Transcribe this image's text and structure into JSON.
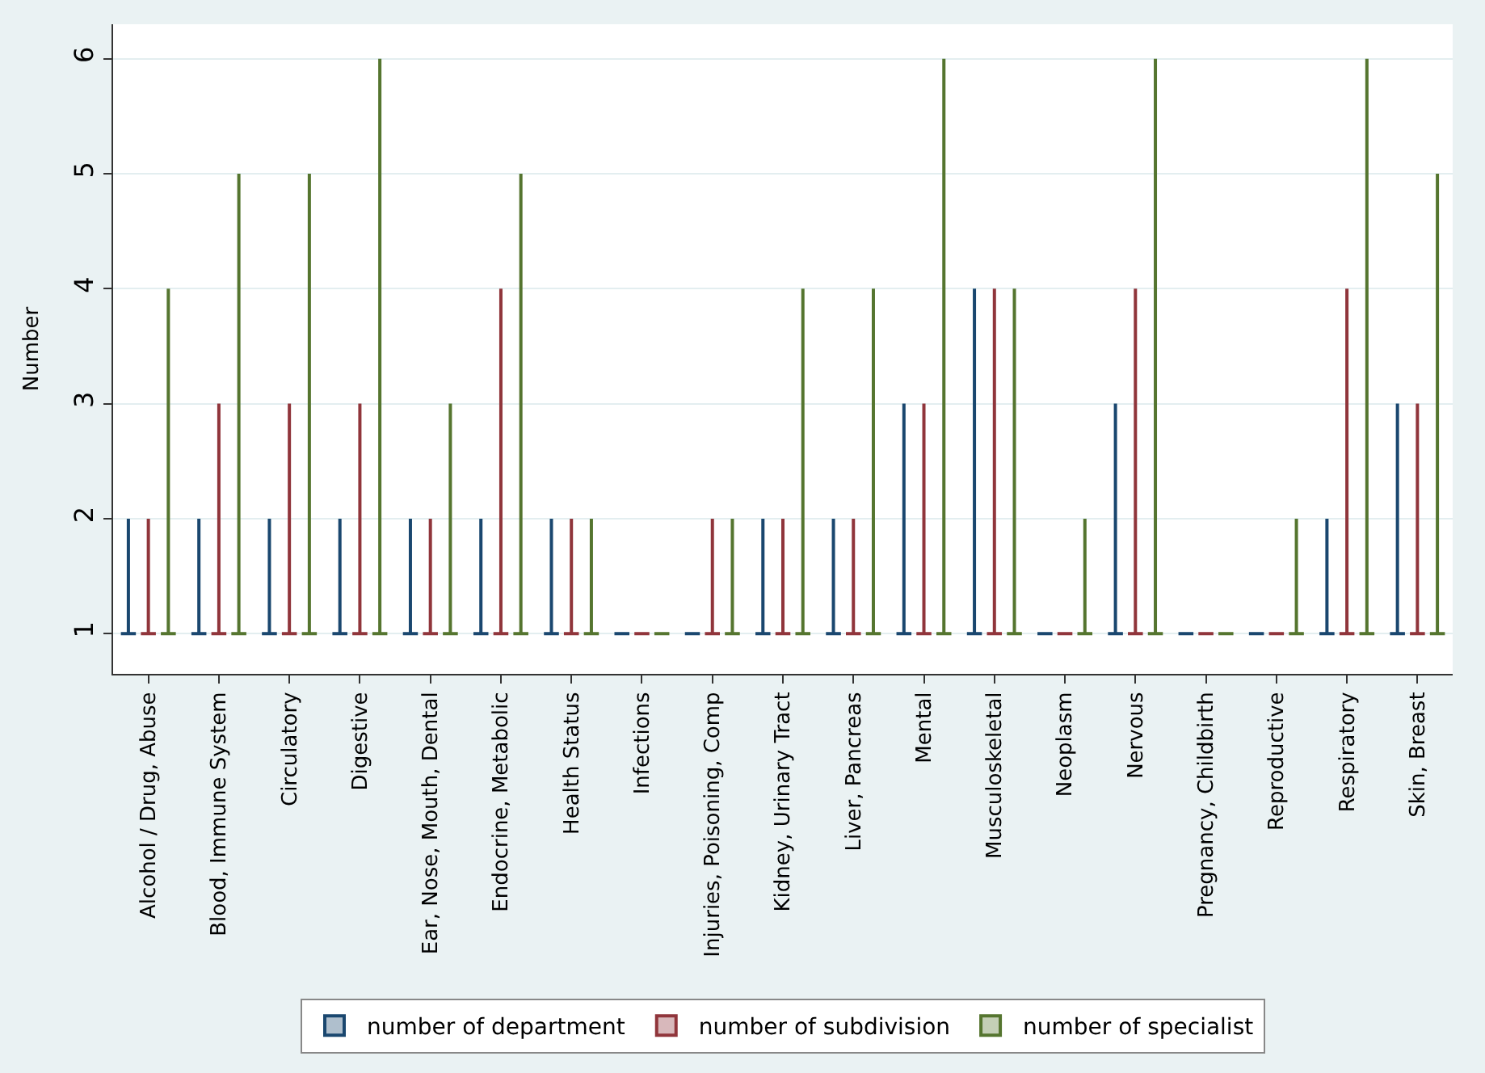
{
  "chart_data": {
    "type": "box",
    "ylabel": "Number",
    "ylim": [
      0.65,
      6.3
    ],
    "yticks": [
      1,
      2,
      3,
      4,
      5,
      6
    ],
    "grid": "y",
    "legend": "bottom",
    "categories": [
      "Alcohol / Drug, Abuse",
      "Blood, Immune System",
      "Circulatory",
      "Digestive",
      "Ear, Nose, Mouth, Dental",
      "Endocrine, Metabolic",
      "Health Status",
      "Infections",
      "Injuries, Poisoning, Comp",
      "Kidney, Urinary Tract",
      "Liver, Pancreas",
      "Mental",
      "Musculoskeletal",
      "Neoplasm",
      "Nervous",
      "Pregnancy, Childbirth",
      "Reproductive",
      "Respiratory",
      "Skin, Breast"
    ],
    "series": [
      {
        "name": "number of department",
        "color": "#1a476f",
        "boxes": [
          {
            "low": 1,
            "q1": 1,
            "median": 1,
            "q3": 1,
            "high": 2
          },
          {
            "low": 1,
            "q1": 1,
            "median": 1,
            "q3": 1,
            "high": 2
          },
          {
            "low": 1,
            "q1": 1,
            "median": 1,
            "q3": 1,
            "high": 2
          },
          {
            "low": 1,
            "q1": 1,
            "median": 1,
            "q3": 1,
            "high": 2
          },
          {
            "low": 1,
            "q1": 1,
            "median": 1,
            "q3": 1,
            "high": 2
          },
          {
            "low": 1,
            "q1": 1,
            "median": 1,
            "q3": 1,
            "high": 2
          },
          {
            "low": 1,
            "q1": 1,
            "median": 1,
            "q3": 1,
            "high": 2
          },
          {
            "low": 1,
            "q1": 1,
            "median": 1,
            "q3": 1,
            "high": 1
          },
          {
            "low": 1,
            "q1": 1,
            "median": 1,
            "q3": 1,
            "high": 1
          },
          {
            "low": 1,
            "q1": 1,
            "median": 1,
            "q3": 1,
            "high": 2
          },
          {
            "low": 1,
            "q1": 1,
            "median": 1,
            "q3": 1,
            "high": 2
          },
          {
            "low": 1,
            "q1": 1,
            "median": 1,
            "q3": 1,
            "high": 3
          },
          {
            "low": 1,
            "q1": 1,
            "median": 1,
            "q3": 1,
            "high": 4
          },
          {
            "low": 1,
            "q1": 1,
            "median": 1,
            "q3": 1,
            "high": 1
          },
          {
            "low": 1,
            "q1": 1,
            "median": 1,
            "q3": 1,
            "high": 3
          },
          {
            "low": 1,
            "q1": 1,
            "median": 1,
            "q3": 1,
            "high": 1
          },
          {
            "low": 1,
            "q1": 1,
            "median": 1,
            "q3": 1,
            "high": 1
          },
          {
            "low": 1,
            "q1": 1,
            "median": 1,
            "q3": 1,
            "high": 2
          },
          {
            "low": 1,
            "q1": 1,
            "median": 1,
            "q3": 1,
            "high": 3
          }
        ]
      },
      {
        "name": "number of subdivision",
        "color": "#90353b",
        "boxes": [
          {
            "low": 1,
            "q1": 1,
            "median": 1,
            "q3": 1,
            "high": 2
          },
          {
            "low": 1,
            "q1": 1,
            "median": 1,
            "q3": 1,
            "high": 3
          },
          {
            "low": 1,
            "q1": 1,
            "median": 1,
            "q3": 1,
            "high": 3
          },
          {
            "low": 1,
            "q1": 1,
            "median": 1,
            "q3": 1,
            "high": 3
          },
          {
            "low": 1,
            "q1": 1,
            "median": 1,
            "q3": 1,
            "high": 2
          },
          {
            "low": 1,
            "q1": 1,
            "median": 1,
            "q3": 1,
            "high": 4
          },
          {
            "low": 1,
            "q1": 1,
            "median": 1,
            "q3": 1,
            "high": 2
          },
          {
            "low": 1,
            "q1": 1,
            "median": 1,
            "q3": 1,
            "high": 1
          },
          {
            "low": 1,
            "q1": 1,
            "median": 1,
            "q3": 1,
            "high": 2
          },
          {
            "low": 1,
            "q1": 1,
            "median": 1,
            "q3": 1,
            "high": 2
          },
          {
            "low": 1,
            "q1": 1,
            "median": 1,
            "q3": 1,
            "high": 2
          },
          {
            "low": 1,
            "q1": 1,
            "median": 1,
            "q3": 1,
            "high": 3
          },
          {
            "low": 1,
            "q1": 1,
            "median": 1,
            "q3": 1,
            "high": 4
          },
          {
            "low": 1,
            "q1": 1,
            "median": 1,
            "q3": 1,
            "high": 1
          },
          {
            "low": 1,
            "q1": 1,
            "median": 1,
            "q3": 1,
            "high": 4
          },
          {
            "low": 1,
            "q1": 1,
            "median": 1,
            "q3": 1,
            "high": 1
          },
          {
            "low": 1,
            "q1": 1,
            "median": 1,
            "q3": 1,
            "high": 1
          },
          {
            "low": 1,
            "q1": 1,
            "median": 1,
            "q3": 1,
            "high": 4
          },
          {
            "low": 1,
            "q1": 1,
            "median": 1,
            "q3": 1,
            "high": 3
          }
        ]
      },
      {
        "name": "number of specialist",
        "color": "#55752f",
        "boxes": [
          {
            "low": 1,
            "q1": 1,
            "median": 1,
            "q3": 1,
            "high": 4
          },
          {
            "low": 1,
            "q1": 1,
            "median": 1,
            "q3": 1,
            "high": 5
          },
          {
            "low": 1,
            "q1": 1,
            "median": 1,
            "q3": 1,
            "high": 5
          },
          {
            "low": 1,
            "q1": 1,
            "median": 1,
            "q3": 1,
            "high": 6
          },
          {
            "low": 1,
            "q1": 1,
            "median": 1,
            "q3": 1,
            "high": 3
          },
          {
            "low": 1,
            "q1": 1,
            "median": 1,
            "q3": 1,
            "high": 5
          },
          {
            "low": 1,
            "q1": 1,
            "median": 1,
            "q3": 1,
            "high": 2
          },
          {
            "low": 1,
            "q1": 1,
            "median": 1,
            "q3": 1,
            "high": 1
          },
          {
            "low": 1,
            "q1": 1,
            "median": 1,
            "q3": 1,
            "high": 2
          },
          {
            "low": 1,
            "q1": 1,
            "median": 1,
            "q3": 1,
            "high": 4
          },
          {
            "low": 1,
            "q1": 1,
            "median": 1,
            "q3": 1,
            "high": 4
          },
          {
            "low": 1,
            "q1": 1,
            "median": 1,
            "q3": 1,
            "high": 6
          },
          {
            "low": 1,
            "q1": 1,
            "median": 1,
            "q3": 1,
            "high": 4
          },
          {
            "low": 1,
            "q1": 1,
            "median": 1,
            "q3": 1,
            "high": 2
          },
          {
            "low": 1,
            "q1": 1,
            "median": 1,
            "q3": 1,
            "high": 6
          },
          {
            "low": 1,
            "q1": 1,
            "median": 1,
            "q3": 1,
            "high": 1
          },
          {
            "low": 1,
            "q1": 1,
            "median": 1,
            "q3": 1,
            "high": 2
          },
          {
            "low": 1,
            "q1": 1,
            "median": 1,
            "q3": 1,
            "high": 6
          },
          {
            "low": 1,
            "q1": 1,
            "median": 1,
            "q3": 1,
            "high": 5
          }
        ]
      }
    ]
  }
}
